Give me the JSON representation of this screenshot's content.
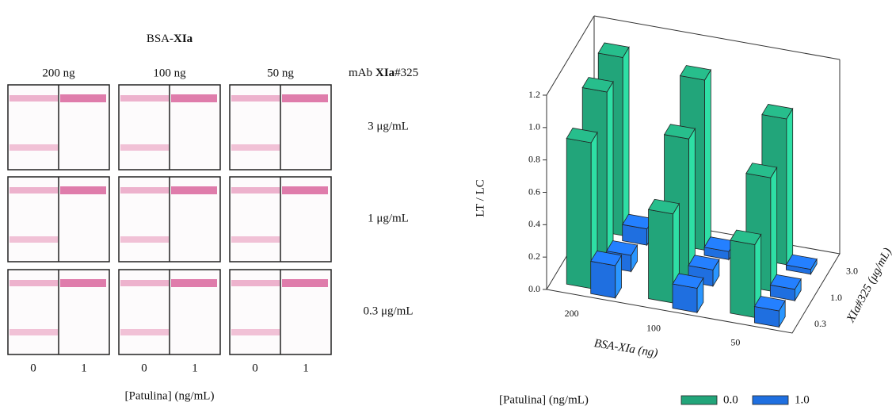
{
  "strip_panel": {
    "title": [
      "BSA-",
      "XIa"
    ],
    "columns": [
      "200 ng",
      "100 ng",
      "50 ng"
    ],
    "antibody_label": [
      "mAb",
      "XIa",
      "#325"
    ],
    "rows": [
      "3 μg/mL",
      "1 μg/mL",
      "0.3 μg/mL"
    ],
    "lane_labels": [
      "0",
      "1"
    ],
    "x_label": "[Patulina] (ng/mL)"
  },
  "chart_data": {
    "type": "bar3d",
    "categories": [
      "200",
      "100",
      "50"
    ],
    "depth_categories": [
      "0.3",
      "1.0",
      "3.0"
    ],
    "xlabel": "BSA-XIa (ng)",
    "ylabel": "LT / LC",
    "depth_label": "XIa#325 (μg/mL)",
    "legend_title": "[Patulina] (ng/mL)",
    "ylim": [
      0,
      1.2
    ],
    "yticks": [
      {
        "value": 0,
        "label": "0.0"
      },
      0.2,
      0.4,
      0.6,
      0.8,
      {
        "value": 1,
        "label": "1.0"
      },
      1.2
    ],
    "series": [
      {
        "name": "0.0",
        "color": "#22a57a",
        "values": [
          [
            0.9,
            1.05,
            1.1
          ],
          [
            0.55,
            0.85,
            1.05
          ],
          [
            0.45,
            0.7,
            0.9
          ]
        ]
      },
      {
        "name": "1.0",
        "color": "#1f6fe0",
        "values": [
          [
            0.2,
            0.1,
            0.1
          ],
          [
            0.15,
            0.1,
            0.05
          ],
          [
            0.1,
            0.07,
            0.03
          ]
        ]
      }
    ]
  }
}
